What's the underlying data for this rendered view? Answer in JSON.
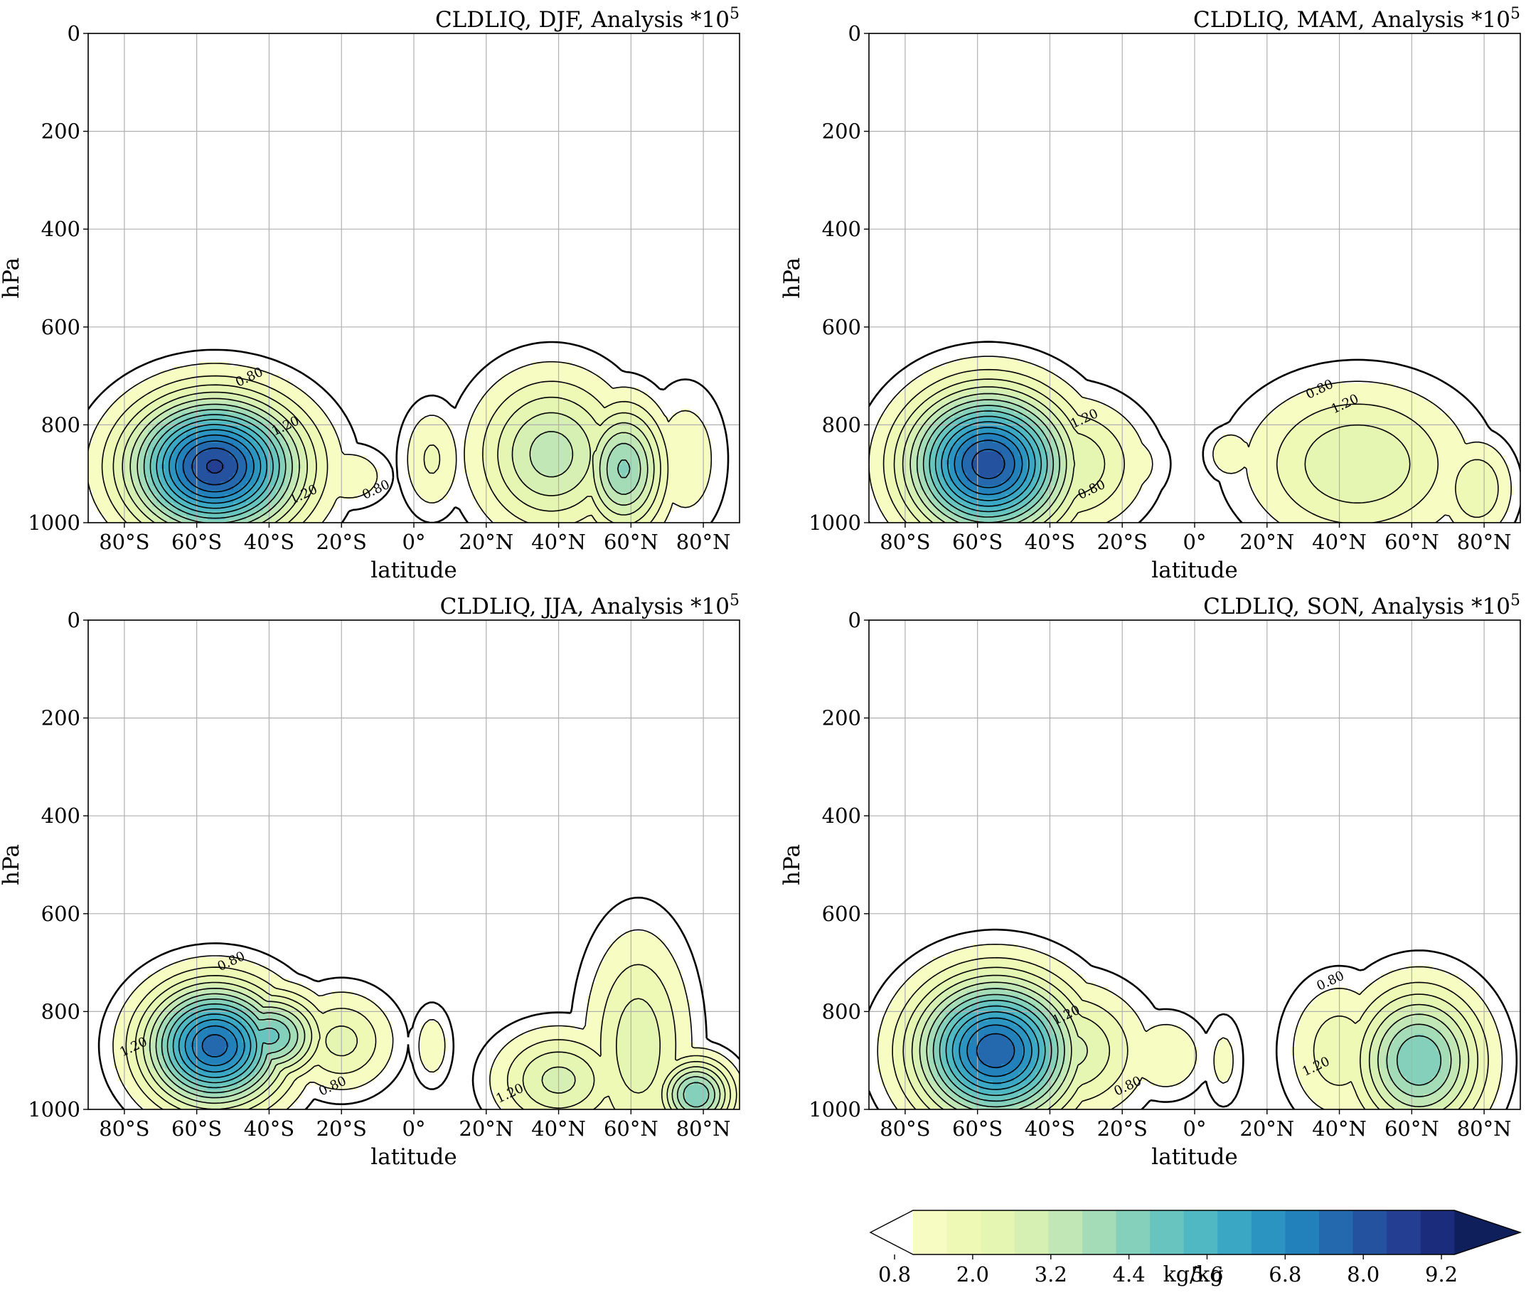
{
  "figure": {
    "panels_chart_data": [
      {
        "type": "contour",
        "title_main": "CLDLIQ, DJF, Analysis *10",
        "title_exp": "5",
        "xlabel": "latitude",
        "ylabel": "hPa",
        "xlim": [
          -90,
          90
        ],
        "ylim": [
          1000,
          0
        ],
        "x_ticks": [
          -80,
          -60,
          -40,
          -20,
          0,
          20,
          40,
          60,
          80
        ],
        "x_tick_labels": [
          "80°S",
          "60°S",
          "40°S",
          "20°S",
          "0°",
          "20°N",
          "40°N",
          "60°N",
          "80°N"
        ],
        "y_ticks": [
          0,
          200,
          400,
          600,
          800,
          1000
        ],
        "y_tick_labels": [
          "0",
          "200",
          "400",
          "600",
          "800",
          "1000"
        ],
        "grid": true,
        "contour_labels": [
          {
            "text": "0.80",
            "lat": -45,
            "p": 710
          },
          {
            "text": "1.20",
            "lat": -35,
            "p": 810
          },
          {
            "text": "1.20",
            "lat": -30,
            "p": 950
          },
          {
            "text": "0.80",
            "lat": -10,
            "p": 940
          }
        ],
        "blobs": [
          {
            "lat": -55,
            "p": 885,
            "max": 9.3,
            "slat": 16,
            "sp": 95
          },
          {
            "lat": -38,
            "p": 880,
            "max": 2.5,
            "slat": 12,
            "sp": 80
          },
          {
            "lat": -18,
            "p": 905,
            "max": 1.3,
            "slat": 8,
            "sp": 45
          },
          {
            "lat": 5,
            "p": 870,
            "max": 1.5,
            "slat": 6,
            "sp": 80
          },
          {
            "lat": 38,
            "p": 860,
            "max": 3.5,
            "slat": 14,
            "sp": 110
          },
          {
            "lat": 58,
            "p": 890,
            "max": 4.5,
            "slat": 8,
            "sp": 90
          },
          {
            "lat": 75,
            "p": 870,
            "max": 1.2,
            "slat": 8,
            "sp": 110
          }
        ]
      },
      {
        "type": "contour",
        "title_main": "CLDLIQ, MAM, Analysis *10",
        "title_exp": "5",
        "xlabel": "latitude",
        "ylabel": "hPa",
        "xlim": [
          -90,
          90
        ],
        "ylim": [
          1000,
          0
        ],
        "x_ticks": [
          -80,
          -60,
          -40,
          -20,
          0,
          20,
          40,
          60,
          80
        ],
        "x_tick_labels": [
          "80°S",
          "60°S",
          "40°S",
          "20°S",
          "0°",
          "20°N",
          "40°N",
          "60°N",
          "80°N"
        ],
        "y_ticks": [
          0,
          200,
          400,
          600,
          800,
          1000
        ],
        "y_tick_labels": [
          "0",
          "200",
          "400",
          "600",
          "800",
          "1000"
        ],
        "grid": true,
        "contour_labels": [
          {
            "text": "1.20",
            "lat": -30,
            "p": 795
          },
          {
            "text": "0.80",
            "lat": -28,
            "p": 940
          },
          {
            "text": "0.80",
            "lat": 35,
            "p": 735
          },
          {
            "text": "1.20",
            "lat": 42,
            "p": 765
          }
        ],
        "blobs": [
          {
            "lat": -57,
            "p": 880,
            "max": 9.0,
            "slat": 15,
            "sp": 100
          },
          {
            "lat": -35,
            "p": 880,
            "max": 2.6,
            "slat": 14,
            "sp": 90
          },
          {
            "lat": -18,
            "p": 880,
            "max": 1.1,
            "slat": 8,
            "sp": 60
          },
          {
            "lat": 10,
            "p": 860,
            "max": 1.3,
            "slat": 5,
            "sp": 40
          },
          {
            "lat": 45,
            "p": 880,
            "max": 2.6,
            "slat": 20,
            "sp": 110
          },
          {
            "lat": 78,
            "p": 930,
            "max": 2.0,
            "slat": 7,
            "sp": 70
          }
        ]
      },
      {
        "type": "contour",
        "title_main": "CLDLIQ, JJA, Analysis *10",
        "title_exp": "5",
        "xlabel": "latitude",
        "ylabel": "hPa",
        "xlim": [
          -90,
          90
        ],
        "ylim": [
          1000,
          0
        ],
        "x_ticks": [
          -80,
          -60,
          -40,
          -20,
          0,
          20,
          40,
          60,
          80
        ],
        "x_tick_labels": [
          "80°S",
          "60°S",
          "40°S",
          "20°S",
          "0°",
          "20°N",
          "40°N",
          "60°N",
          "80°N"
        ],
        "y_ticks": [
          0,
          200,
          400,
          600,
          800,
          1000
        ],
        "y_tick_labels": [
          "0",
          "200",
          "400",
          "600",
          "800",
          "1000"
        ],
        "grid": true,
        "contour_labels": [
          {
            "text": "0.80",
            "lat": -50,
            "p": 705
          },
          {
            "text": "1.20",
            "lat": -77,
            "p": 880
          },
          {
            "text": "0.80",
            "lat": -22,
            "p": 960
          },
          {
            "text": "1.20",
            "lat": 27,
            "p": 975
          }
        ],
        "blobs": [
          {
            "lat": -55,
            "p": 870,
            "max": 8.3,
            "slat": 13,
            "sp": 85
          },
          {
            "lat": -40,
            "p": 850,
            "max": 5.2,
            "slat": 10,
            "sp": 60
          },
          {
            "lat": -20,
            "p": 860,
            "max": 2.2,
            "slat": 10,
            "sp": 70
          },
          {
            "lat": 5,
            "p": 870,
            "max": 1.2,
            "slat": 4,
            "sp": 60
          },
          {
            "lat": 40,
            "p": 940,
            "max": 2.8,
            "slat": 12,
            "sp": 70
          },
          {
            "lat": 62,
            "p": 870,
            "max": 2.4,
            "slat": 10,
            "sp": 160
          },
          {
            "lat": 78,
            "p": 970,
            "max": 5.0,
            "slat": 7,
            "sp": 50
          }
        ]
      },
      {
        "type": "contour",
        "title_main": "CLDLIQ, SON, Analysis *10",
        "title_exp": "5",
        "xlabel": "latitude",
        "ylabel": "hPa",
        "xlim": [
          -90,
          90
        ],
        "ylim": [
          1000,
          0
        ],
        "x_ticks": [
          -80,
          -60,
          -40,
          -20,
          0,
          20,
          40,
          60,
          80
        ],
        "x_tick_labels": [
          "80°S",
          "60°S",
          "40°S",
          "20°S",
          "0°",
          "20°N",
          "40°N",
          "60°N",
          "80°N"
        ],
        "y_ticks": [
          0,
          200,
          400,
          600,
          800,
          1000
        ],
        "y_tick_labels": [
          "0",
          "200",
          "400",
          "600",
          "800",
          "1000"
        ],
        "grid": true,
        "contour_labels": [
          {
            "text": "1.20",
            "lat": -35,
            "p": 815
          },
          {
            "text": "0.80",
            "lat": -18,
            "p": 960
          },
          {
            "text": "0.80",
            "lat": 38,
            "p": 745
          },
          {
            "text": "1.20",
            "lat": 34,
            "p": 920
          }
        ],
        "blobs": [
          {
            "lat": -55,
            "p": 880,
            "max": 8.5,
            "slat": 15,
            "sp": 100
          },
          {
            "lat": -35,
            "p": 880,
            "max": 2.8,
            "slat": 14,
            "sp": 90
          },
          {
            "lat": -8,
            "p": 890,
            "max": 1.4,
            "slat": 8,
            "sp": 60
          },
          {
            "lat": 8,
            "p": 900,
            "max": 1.0,
            "slat": 4,
            "sp": 70
          },
          {
            "lat": 62,
            "p": 900,
            "max": 5.0,
            "slat": 12,
            "sp": 100
          },
          {
            "lat": 40,
            "p": 880,
            "max": 1.8,
            "slat": 10,
            "sp": 100
          }
        ]
      }
    ],
    "colorbar": {
      "levels": [
        0.8,
        1.4,
        2.0,
        2.6,
        3.2,
        3.8,
        4.4,
        5.0,
        5.6,
        6.2,
        6.8,
        7.4,
        8.0,
        8.6,
        9.2,
        9.8
      ],
      "colors": [
        "#f7fcc2",
        "#eff9b6",
        "#e5f5b2",
        "#d6efb3",
        "#c1e7b6",
        "#a5dcb8",
        "#85d0ba",
        "#68c4be",
        "#4fb8c3",
        "#3aa7c4",
        "#2b94c1",
        "#2280ba",
        "#2469ad",
        "#25529f",
        "#243e92",
        "#1b2c7d",
        "#0f1f5b"
      ],
      "under_color": "#ffffff",
      "tick_labels": [
        "0.8",
        "2.0",
        "3.2",
        "4.4",
        "5.6",
        "6.8",
        "8.0",
        "9.2"
      ],
      "label": "kg/kg"
    }
  }
}
